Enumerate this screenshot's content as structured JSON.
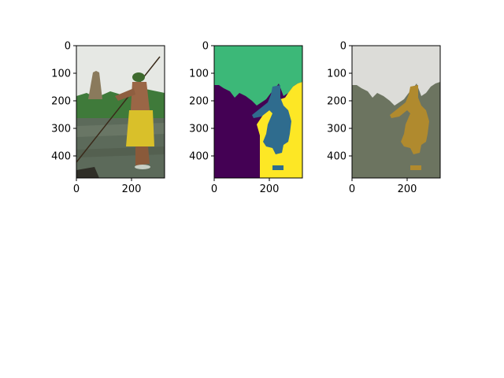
{
  "chart_data": [
    {
      "type": "image",
      "content": "photo",
      "xticks": [
        "0",
        "200"
      ],
      "yticks": [
        "0",
        "100",
        "200",
        "300",
        "400"
      ],
      "xlim": [
        0,
        320
      ],
      "ylim": [
        480,
        0
      ]
    },
    {
      "type": "image",
      "content": "segmentation label map",
      "colors": [
        "#440154",
        "#3cb878",
        "#2f6c8e",
        "#fde725"
      ],
      "xticks": [
        "0",
        "200"
      ],
      "yticks": [
        "0",
        "100",
        "200",
        "300",
        "400"
      ],
      "xlim": [
        0,
        320
      ],
      "ylim": [
        480,
        0
      ]
    },
    {
      "type": "image",
      "content": "segment mean-color image",
      "colors": [
        "#6c7460",
        "#dcdcd8",
        "#b08a2e"
      ],
      "xticks": [
        "0",
        "200"
      ],
      "yticks": [
        "0",
        "100",
        "200",
        "300",
        "400"
      ],
      "xlim": [
        0,
        320
      ],
      "ylim": [
        480,
        0
      ]
    }
  ]
}
